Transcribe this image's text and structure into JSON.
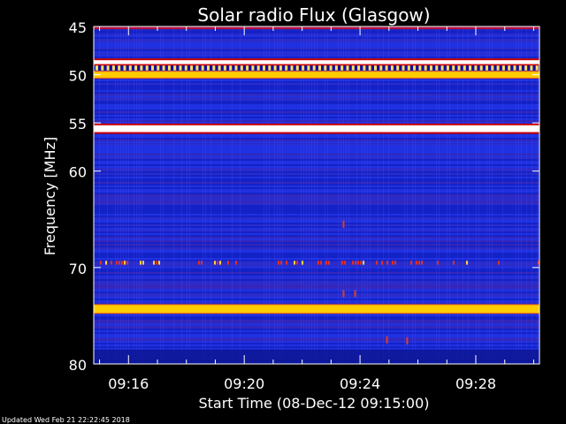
{
  "chart_data": {
    "type": "heatmap",
    "title": "Solar radio Flux (Glasgow)",
    "xlabel": "Start Time (08-Dec-12 09:15:00)",
    "ylabel": "Frequency [MHz]",
    "footer": "Updated Wed Feb 21 22:22:45 2018",
    "x_ticks": [
      "09:16",
      "09:20",
      "09:24",
      "09:28"
    ],
    "x_tick_minutes": [
      16,
      20,
      24,
      28
    ],
    "xlim_minutes": [
      14.8,
      30.2
    ],
    "y_ticks": [
      45,
      50,
      55,
      60,
      70,
      80
    ],
    "ylim": [
      45,
      80
    ],
    "colormap": {
      "background": "#1a2ad8",
      "high": "#ffffff",
      "mid": "#ffcc00",
      "low": "#cc0000"
    },
    "bands": [
      {
        "freq": 48.7,
        "width": 0.4,
        "level": "high"
      },
      {
        "freq": 49.3,
        "width": 0.5,
        "level": "dashed"
      },
      {
        "freq": 50.0,
        "width": 0.6,
        "level": "mid"
      },
      {
        "freq": 55.6,
        "width": 0.7,
        "level": "high"
      },
      {
        "freq": 69.5,
        "width": 0.4,
        "level": "dots"
      },
      {
        "freq": 74.3,
        "width": 0.8,
        "level": "mid"
      }
    ]
  }
}
